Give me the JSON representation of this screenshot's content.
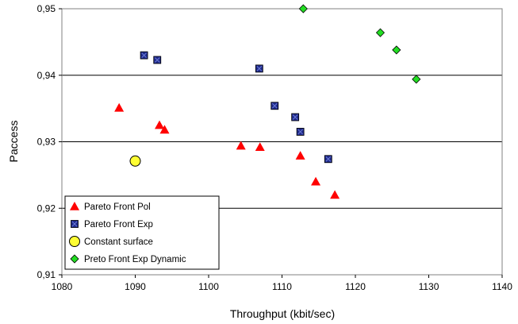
{
  "chart_data": {
    "type": "scatter",
    "title": "",
    "xlabel": "Throughput (kbit/sec)",
    "ylabel": "Paccess",
    "xlim": [
      1080,
      1140
    ],
    "ylim": [
      0.91,
      0.95
    ],
    "x_ticks": [
      "1080",
      "1090",
      "1100",
      "1110",
      "1120",
      "1130",
      "1140"
    ],
    "y_ticks": [
      "0,91",
      "0,92",
      "0,93",
      "0,94",
      "0,95"
    ],
    "grid": "horizontal",
    "legend_position": "bottom-left",
    "series": [
      {
        "name": "Pareto Front Pol",
        "marker": "triangle",
        "color": "#ff0000",
        "points": [
          [
            1087.8,
            0.9351
          ],
          [
            1093.3,
            0.9325
          ],
          [
            1094.0,
            0.9318
          ],
          [
            1104.4,
            0.9294
          ],
          [
            1107.0,
            0.9292
          ],
          [
            1112.5,
            0.9279
          ],
          [
            1114.6,
            0.924
          ],
          [
            1117.2,
            0.922
          ]
        ]
      },
      {
        "name": "Pareto Front Exp",
        "marker": "square",
        "color": "#1f2a8a",
        "points": [
          [
            1091.2,
            0.943
          ],
          [
            1093.0,
            0.9423
          ],
          [
            1106.9,
            0.941
          ],
          [
            1109.0,
            0.9354
          ],
          [
            1111.8,
            0.9337
          ],
          [
            1112.5,
            0.9315
          ],
          [
            1116.3,
            0.9274
          ]
        ]
      },
      {
        "name": "Constant surface",
        "marker": "circle",
        "color": "#ffff33",
        "points": [
          [
            1090.0,
            0.9271
          ]
        ]
      },
      {
        "name": "Preto Front Exp Dynamic",
        "marker": "diamond",
        "color": "#22dd22",
        "points": [
          [
            1112.9,
            0.95
          ],
          [
            1123.4,
            0.9464
          ],
          [
            1125.6,
            0.9438
          ],
          [
            1128.3,
            0.9394
          ]
        ]
      }
    ]
  }
}
